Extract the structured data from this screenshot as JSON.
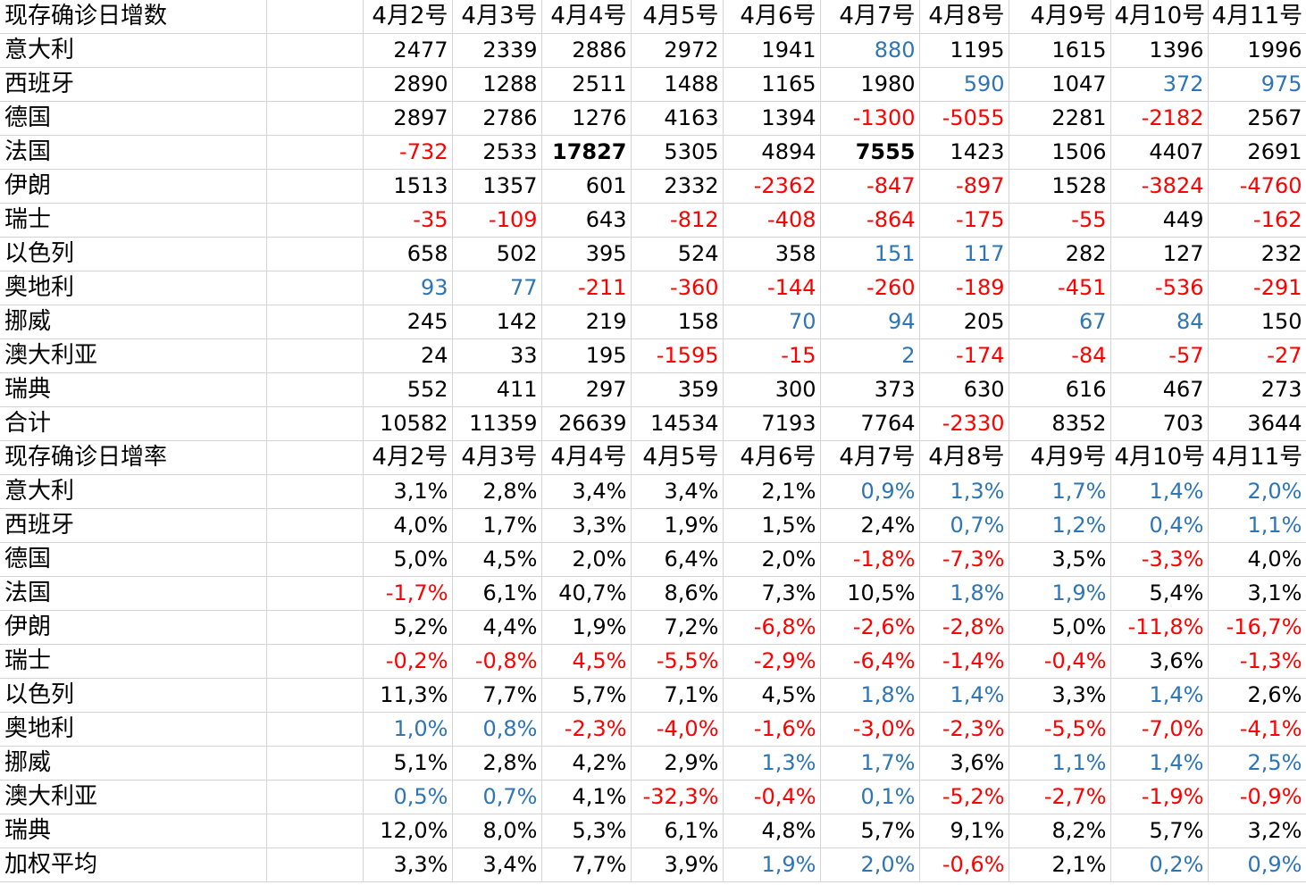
{
  "colors": {
    "default": "#000000",
    "red": "#ff0000",
    "blue": "#2e75b6",
    "gridline": "#d4d4d4"
  },
  "rows": [
    {
      "type": "header",
      "label": "现存确诊日增数",
      "cells": [
        {
          "v": "4月2号"
        },
        {
          "v": "4月3号"
        },
        {
          "v": "4月4号"
        },
        {
          "v": "4月5号"
        },
        {
          "v": "4月6号"
        },
        {
          "v": "4月7号"
        },
        {
          "v": "4月8号"
        },
        {
          "v": "4月9号"
        },
        {
          "v": "4月10号"
        },
        {
          "v": "4月11号"
        }
      ]
    },
    {
      "type": "data",
      "label": "意大利",
      "cells": [
        {
          "v": "2477"
        },
        {
          "v": "2339"
        },
        {
          "v": "2886"
        },
        {
          "v": "2972"
        },
        {
          "v": "1941"
        },
        {
          "v": "880",
          "c": "blue"
        },
        {
          "v": "1195"
        },
        {
          "v": "1615"
        },
        {
          "v": "1396"
        },
        {
          "v": "1996"
        }
      ]
    },
    {
      "type": "data",
      "label": "西班牙",
      "cells": [
        {
          "v": "2890"
        },
        {
          "v": "1288"
        },
        {
          "v": "2511"
        },
        {
          "v": "1488"
        },
        {
          "v": "1165"
        },
        {
          "v": "1980"
        },
        {
          "v": "590",
          "c": "blue"
        },
        {
          "v": "1047"
        },
        {
          "v": "372",
          "c": "blue"
        },
        {
          "v": "975",
          "c": "blue"
        }
      ]
    },
    {
      "type": "data",
      "label": "德国",
      "cells": [
        {
          "v": "2897"
        },
        {
          "v": "2786"
        },
        {
          "v": "1276"
        },
        {
          "v": "4163"
        },
        {
          "v": "1394"
        },
        {
          "v": "-1300",
          "c": "red"
        },
        {
          "v": "-5055",
          "c": "red"
        },
        {
          "v": "2281"
        },
        {
          "v": "-2182",
          "c": "red"
        },
        {
          "v": "2567"
        }
      ]
    },
    {
      "type": "data",
      "label": "法国",
      "cells": [
        {
          "v": "-732",
          "c": "red"
        },
        {
          "v": "2533"
        },
        {
          "v": "17827",
          "b": true
        },
        {
          "v": "5305"
        },
        {
          "v": "4894"
        },
        {
          "v": "7555",
          "b": true
        },
        {
          "v": "1423"
        },
        {
          "v": "1506"
        },
        {
          "v": "4407"
        },
        {
          "v": "2691"
        }
      ]
    },
    {
      "type": "data",
      "label": "伊朗",
      "cells": [
        {
          "v": "1513"
        },
        {
          "v": "1357"
        },
        {
          "v": "601"
        },
        {
          "v": "2332"
        },
        {
          "v": "-2362",
          "c": "red"
        },
        {
          "v": "-847",
          "c": "red"
        },
        {
          "v": "-897",
          "c": "red"
        },
        {
          "v": "1528"
        },
        {
          "v": "-3824",
          "c": "red"
        },
        {
          "v": "-4760",
          "c": "red"
        }
      ]
    },
    {
      "type": "data",
      "label": "瑞士",
      "cells": [
        {
          "v": "-35",
          "c": "red"
        },
        {
          "v": "-109",
          "c": "red"
        },
        {
          "v": "643"
        },
        {
          "v": "-812",
          "c": "red"
        },
        {
          "v": "-408",
          "c": "red"
        },
        {
          "v": "-864",
          "c": "red"
        },
        {
          "v": "-175",
          "c": "red"
        },
        {
          "v": "-55",
          "c": "red"
        },
        {
          "v": "449"
        },
        {
          "v": "-162",
          "c": "red"
        }
      ]
    },
    {
      "type": "data",
      "label": "以色列",
      "cells": [
        {
          "v": "658"
        },
        {
          "v": "502"
        },
        {
          "v": "395"
        },
        {
          "v": "524"
        },
        {
          "v": "358"
        },
        {
          "v": "151",
          "c": "blue"
        },
        {
          "v": "117",
          "c": "blue"
        },
        {
          "v": "282"
        },
        {
          "v": "127"
        },
        {
          "v": "232"
        }
      ]
    },
    {
      "type": "data",
      "label": "奥地利",
      "cells": [
        {
          "v": "93",
          "c": "blue"
        },
        {
          "v": "77",
          "c": "blue"
        },
        {
          "v": "-211",
          "c": "red"
        },
        {
          "v": "-360",
          "c": "red"
        },
        {
          "v": "-144",
          "c": "red"
        },
        {
          "v": "-260",
          "c": "red"
        },
        {
          "v": "-189",
          "c": "red"
        },
        {
          "v": "-451",
          "c": "red"
        },
        {
          "v": "-536",
          "c": "red"
        },
        {
          "v": "-291",
          "c": "red"
        }
      ]
    },
    {
      "type": "data",
      "label": "挪威",
      "cells": [
        {
          "v": "245"
        },
        {
          "v": "142"
        },
        {
          "v": "219"
        },
        {
          "v": "158"
        },
        {
          "v": "70",
          "c": "blue"
        },
        {
          "v": "94",
          "c": "blue"
        },
        {
          "v": "205"
        },
        {
          "v": "67",
          "c": "blue"
        },
        {
          "v": "84",
          "c": "blue"
        },
        {
          "v": "150"
        }
      ]
    },
    {
      "type": "data",
      "label": "澳大利亚",
      "cells": [
        {
          "v": "24"
        },
        {
          "v": "33"
        },
        {
          "v": "195"
        },
        {
          "v": "-1595",
          "c": "red"
        },
        {
          "v": "-15",
          "c": "red"
        },
        {
          "v": "2",
          "c": "blue"
        },
        {
          "v": "-174",
          "c": "red"
        },
        {
          "v": "-84",
          "c": "red"
        },
        {
          "v": "-57",
          "c": "red"
        },
        {
          "v": "-27",
          "c": "red"
        }
      ]
    },
    {
      "type": "data",
      "label": "瑞典",
      "cells": [
        {
          "v": "552"
        },
        {
          "v": "411"
        },
        {
          "v": "297"
        },
        {
          "v": "359"
        },
        {
          "v": "300"
        },
        {
          "v": "373"
        },
        {
          "v": "630"
        },
        {
          "v": "616"
        },
        {
          "v": "467"
        },
        {
          "v": "273"
        }
      ]
    },
    {
      "type": "data",
      "label": "合计",
      "cells": [
        {
          "v": "10582"
        },
        {
          "v": "11359"
        },
        {
          "v": "26639"
        },
        {
          "v": "14534"
        },
        {
          "v": "7193"
        },
        {
          "v": "7764"
        },
        {
          "v": "-2330",
          "c": "red"
        },
        {
          "v": "8352"
        },
        {
          "v": "703"
        },
        {
          "v": "3644"
        }
      ]
    },
    {
      "type": "header",
      "label": "现存确诊日增率",
      "cells": [
        {
          "v": "4月2号"
        },
        {
          "v": "4月3号"
        },
        {
          "v": "4月4号"
        },
        {
          "v": "4月5号"
        },
        {
          "v": "4月6号"
        },
        {
          "v": "4月7号"
        },
        {
          "v": "4月8号"
        },
        {
          "v": "4月9号"
        },
        {
          "v": "4月10号"
        },
        {
          "v": "4月11号"
        }
      ]
    },
    {
      "type": "data",
      "label": "意大利",
      "cells": [
        {
          "v": "3,1%"
        },
        {
          "v": "2,8%"
        },
        {
          "v": "3,4%"
        },
        {
          "v": "3,4%"
        },
        {
          "v": "2,1%"
        },
        {
          "v": "0,9%",
          "c": "blue"
        },
        {
          "v": "1,3%",
          "c": "blue"
        },
        {
          "v": "1,7%",
          "c": "blue"
        },
        {
          "v": "1,4%",
          "c": "blue"
        },
        {
          "v": "2,0%",
          "c": "blue"
        }
      ]
    },
    {
      "type": "data",
      "label": "西班牙",
      "cells": [
        {
          "v": "4,0%"
        },
        {
          "v": "1,7%"
        },
        {
          "v": "3,3%"
        },
        {
          "v": "1,9%"
        },
        {
          "v": "1,5%"
        },
        {
          "v": "2,4%"
        },
        {
          "v": "0,7%",
          "c": "blue"
        },
        {
          "v": "1,2%",
          "c": "blue"
        },
        {
          "v": "0,4%",
          "c": "blue"
        },
        {
          "v": "1,1%",
          "c": "blue"
        }
      ]
    },
    {
      "type": "data",
      "label": "德国",
      "cells": [
        {
          "v": "5,0%"
        },
        {
          "v": "4,5%"
        },
        {
          "v": "2,0%"
        },
        {
          "v": "6,4%"
        },
        {
          "v": "2,0%"
        },
        {
          "v": "-1,8%",
          "c": "red"
        },
        {
          "v": "-7,3%",
          "c": "red"
        },
        {
          "v": "3,5%"
        },
        {
          "v": "-3,3%",
          "c": "red"
        },
        {
          "v": "4,0%"
        }
      ]
    },
    {
      "type": "data",
      "label": "法国",
      "cells": [
        {
          "v": "-1,7%",
          "c": "red"
        },
        {
          "v": "6,1%"
        },
        {
          "v": "40,7%"
        },
        {
          "v": "8,6%"
        },
        {
          "v": "7,3%"
        },
        {
          "v": "10,5%"
        },
        {
          "v": "1,8%",
          "c": "blue"
        },
        {
          "v": "1,9%",
          "c": "blue"
        },
        {
          "v": "5,4%"
        },
        {
          "v": "3,1%"
        }
      ]
    },
    {
      "type": "data",
      "label": "伊朗",
      "cells": [
        {
          "v": "5,2%"
        },
        {
          "v": "4,4%"
        },
        {
          "v": "1,9%"
        },
        {
          "v": "7,2%"
        },
        {
          "v": "-6,8%",
          "c": "red"
        },
        {
          "v": "-2,6%",
          "c": "red"
        },
        {
          "v": "-2,8%",
          "c": "red"
        },
        {
          "v": "5,0%"
        },
        {
          "v": "-11,8%",
          "c": "red"
        },
        {
          "v": "-16,7%",
          "c": "red"
        }
      ]
    },
    {
      "type": "data",
      "label": "瑞士",
      "cells": [
        {
          "v": "-0,2%",
          "c": "red"
        },
        {
          "v": "-0,8%",
          "c": "red"
        },
        {
          "v": "4,5%",
          "c": "red"
        },
        {
          "v": "-5,5%",
          "c": "red"
        },
        {
          "v": "-2,9%",
          "c": "red"
        },
        {
          "v": "-6,4%",
          "c": "red"
        },
        {
          "v": "-1,4%",
          "c": "red"
        },
        {
          "v": "-0,4%",
          "c": "red"
        },
        {
          "v": "3,6%"
        },
        {
          "v": "-1,3%",
          "c": "red"
        }
      ]
    },
    {
      "type": "data",
      "label": "以色列",
      "cells": [
        {
          "v": "11,3%"
        },
        {
          "v": "7,7%"
        },
        {
          "v": "5,7%"
        },
        {
          "v": "7,1%"
        },
        {
          "v": "4,5%"
        },
        {
          "v": "1,8%",
          "c": "blue"
        },
        {
          "v": "1,4%",
          "c": "blue"
        },
        {
          "v": "3,3%"
        },
        {
          "v": "1,4%",
          "c": "blue"
        },
        {
          "v": "2,6%"
        }
      ]
    },
    {
      "type": "data",
      "label": "奥地利",
      "cells": [
        {
          "v": "1,0%",
          "c": "blue"
        },
        {
          "v": "0,8%",
          "c": "blue"
        },
        {
          "v": "-2,3%",
          "c": "red"
        },
        {
          "v": "-4,0%",
          "c": "red"
        },
        {
          "v": "-1,6%",
          "c": "red"
        },
        {
          "v": "-3,0%",
          "c": "red"
        },
        {
          "v": "-2,3%",
          "c": "red"
        },
        {
          "v": "-5,5%",
          "c": "red"
        },
        {
          "v": "-7,0%",
          "c": "red"
        },
        {
          "v": "-4,1%",
          "c": "red"
        }
      ]
    },
    {
      "type": "data",
      "label": "挪威",
      "cells": [
        {
          "v": "5,1%"
        },
        {
          "v": "2,8%"
        },
        {
          "v": "4,2%"
        },
        {
          "v": "2,9%"
        },
        {
          "v": "1,3%",
          "c": "blue"
        },
        {
          "v": "1,7%",
          "c": "blue"
        },
        {
          "v": "3,6%"
        },
        {
          "v": "1,1%",
          "c": "blue"
        },
        {
          "v": "1,4%",
          "c": "blue"
        },
        {
          "v": "2,5%",
          "c": "blue"
        }
      ]
    },
    {
      "type": "data",
      "label": "澳大利亚",
      "cells": [
        {
          "v": "0,5%",
          "c": "blue"
        },
        {
          "v": "0,7%",
          "c": "blue"
        },
        {
          "v": "4,1%"
        },
        {
          "v": "-32,3%",
          "c": "red"
        },
        {
          "v": "-0,4%",
          "c": "red"
        },
        {
          "v": "0,1%",
          "c": "blue"
        },
        {
          "v": "-5,2%",
          "c": "red"
        },
        {
          "v": "-2,7%",
          "c": "red"
        },
        {
          "v": "-1,9%",
          "c": "red"
        },
        {
          "v": "-0,9%",
          "c": "red"
        }
      ]
    },
    {
      "type": "data",
      "label": "瑞典",
      "cells": [
        {
          "v": "12,0%"
        },
        {
          "v": "8,0%"
        },
        {
          "v": "5,3%"
        },
        {
          "v": "6,1%"
        },
        {
          "v": "4,8%"
        },
        {
          "v": "5,7%"
        },
        {
          "v": "9,1%"
        },
        {
          "v": "8,2%"
        },
        {
          "v": "5,7%"
        },
        {
          "v": "3,2%"
        }
      ]
    },
    {
      "type": "data",
      "label": "加权平均",
      "cells": [
        {
          "v": "3,3%"
        },
        {
          "v": "3,4%"
        },
        {
          "v": "7,7%"
        },
        {
          "v": "3,9%"
        },
        {
          "v": "1,9%",
          "c": "blue"
        },
        {
          "v": "2,0%",
          "c": "blue"
        },
        {
          "v": "-0,6%",
          "c": "red"
        },
        {
          "v": "2,1%"
        },
        {
          "v": "0,2%",
          "c": "blue"
        },
        {
          "v": "0,9%",
          "c": "blue"
        }
      ]
    }
  ]
}
